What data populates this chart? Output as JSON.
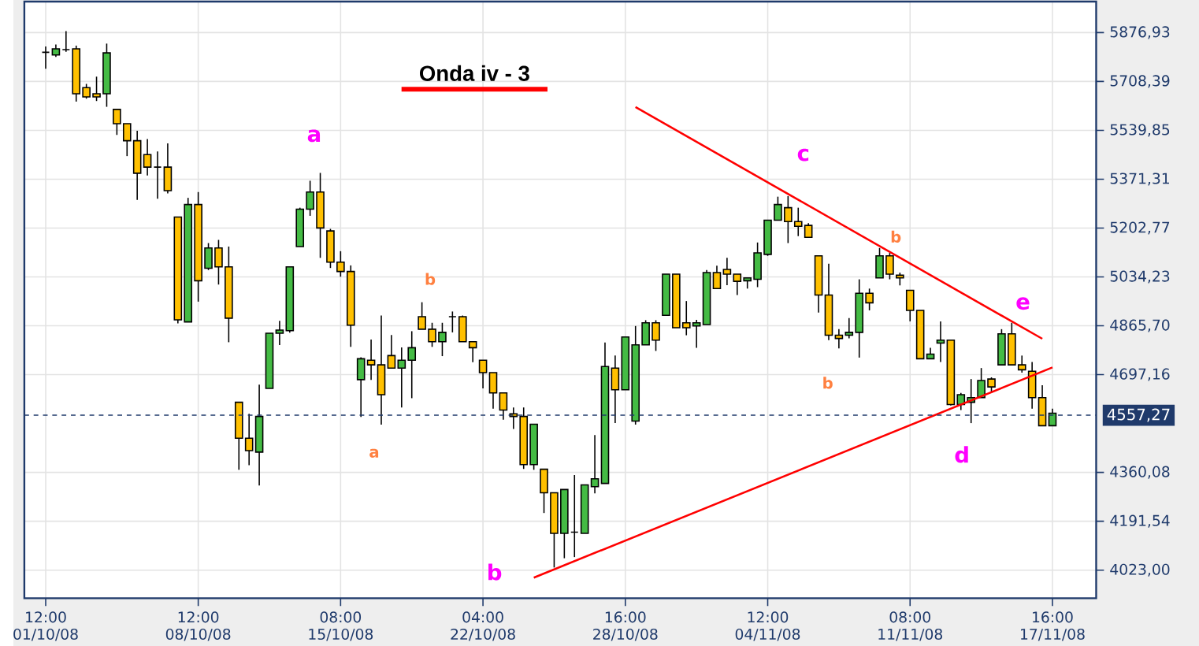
{
  "chart_data": {
    "type": "candlestick",
    "title": "Onda iv - 3",
    "categories": [
      "12:00 01/10/08",
      null,
      null,
      null,
      null,
      null,
      null,
      null,
      null,
      null,
      null,
      null,
      null,
      null,
      null,
      "12:00 08/10/08",
      null,
      null,
      null,
      null,
      null,
      null,
      null,
      null,
      null,
      null,
      null,
      null,
      null,
      "08:00 15/10/08",
      null,
      null,
      null,
      null,
      null,
      null,
      null,
      null,
      null,
      null,
      null,
      null,
      null,
      "04:00 22/10/08",
      null,
      null,
      null,
      null,
      null,
      null,
      null,
      null,
      null,
      null,
      null,
      null,
      null,
      "16:00 28/10/08",
      null,
      null,
      null,
      null,
      null,
      null,
      null,
      null,
      null,
      null,
      null,
      null,
      null,
      "12:00 04/11/08",
      null,
      null,
      null,
      null,
      null,
      null,
      null,
      null,
      null,
      null,
      null,
      null,
      null,
      "08:00 11/11/08",
      null,
      null,
      null,
      null,
      null,
      null,
      null,
      null,
      null,
      null,
      null,
      null,
      null,
      "16:00 17/11/08"
    ],
    "ylim": [
      3926,
      5984
    ],
    "yticks": [
      {
        "value": 4023.0,
        "label": "4023,00"
      },
      {
        "value": 4191.54,
        "label": "4191,54"
      },
      {
        "value": 4360.08,
        "label": "4360,08"
      },
      {
        "value": 4697.16,
        "label": "4697,16"
      },
      {
        "value": 4865.7,
        "label": "4865,70"
      },
      {
        "value": 5034.23,
        "label": "5034,23"
      },
      {
        "value": 5202.77,
        "label": "5202,77"
      },
      {
        "value": 5371.31,
        "label": "5371,31"
      },
      {
        "value": 5539.85,
        "label": "5539,85"
      },
      {
        "value": 5708.39,
        "label": "5708,39"
      },
      {
        "value": 5876.93,
        "label": "5876,93"
      }
    ],
    "grid": true,
    "series": [
      {
        "ohlc": [
          [
            5809,
            5829,
            5752,
            5809
          ],
          [
            5800,
            5836,
            5793,
            5821
          ],
          [
            5818,
            5882,
            5811,
            5818
          ],
          [
            5821,
            5832,
            5639,
            5666
          ],
          [
            5687,
            5700,
            5649,
            5655
          ],
          [
            5666,
            5725,
            5641,
            5655
          ],
          [
            5666,
            5839,
            5621,
            5807
          ],
          [
            5612,
            5612,
            5524,
            5563
          ],
          [
            5563,
            5563,
            5451,
            5504
          ],
          [
            5504,
            5538,
            5300,
            5392
          ],
          [
            5456,
            5510,
            5384,
            5413
          ],
          [
            5413,
            5467,
            5304,
            5413
          ],
          [
            5413,
            5495,
            5322,
            5332
          ],
          [
            5241,
            5241,
            4874,
            4886
          ],
          [
            4879,
            5307,
            4879,
            5284
          ],
          [
            5284,
            5327,
            4949,
            5021
          ],
          [
            5064,
            5151,
            5058,
            5134
          ],
          [
            5134,
            5162,
            5008,
            5069
          ],
          [
            5069,
            5139,
            4809,
            4892
          ],
          [
            4602,
            4602,
            4369,
            4478
          ],
          [
            4478,
            4562,
            4385,
            4435
          ],
          [
            4430,
            4663,
            4315,
            4553
          ],
          [
            4650,
            4840,
            4650,
            4840
          ],
          [
            4840,
            4883,
            4799,
            4851
          ],
          [
            4849,
            5069,
            4842,
            5069
          ],
          [
            5139,
            5273,
            5139,
            5268
          ],
          [
            5268,
            5366,
            5245,
            5327
          ],
          [
            5327,
            5393,
            5100,
            5203
          ],
          [
            5193,
            5200,
            5065,
            5085
          ],
          [
            5085,
            5123,
            5035,
            5053
          ],
          [
            5053,
            5074,
            4793,
            4868
          ],
          [
            4680,
            4757,
            4551,
            4752
          ],
          [
            4747,
            4818,
            4679,
            4731
          ],
          [
            4731,
            4901,
            4525,
            4628
          ],
          [
            4763,
            4834,
            4720,
            4720
          ],
          [
            4720,
            4791,
            4584,
            4747
          ],
          [
            4747,
            4847,
            4616,
            4790
          ],
          [
            4897,
            4947,
            4854,
            4854
          ],
          [
            4854,
            4876,
            4793,
            4811
          ],
          [
            4811,
            4876,
            4761,
            4843
          ],
          [
            4897,
            4915,
            4843,
            4897
          ],
          [
            4897,
            4901,
            4811,
            4811
          ],
          [
            4811,
            4811,
            4740,
            4790
          ],
          [
            4747,
            4747,
            4650,
            4704
          ],
          [
            4704,
            4704,
            4580,
            4634
          ],
          [
            4634,
            4634,
            4542,
            4575
          ],
          [
            4562,
            4584,
            4510,
            4553
          ],
          [
            4553,
            4584,
            4372,
            4387
          ],
          [
            4387,
            4526,
            4369,
            4526
          ],
          [
            4371,
            4371,
            4220,
            4290
          ],
          [
            4290,
            4290,
            4032,
            4150
          ],
          [
            4150,
            4301,
            4064,
            4301
          ],
          [
            4154,
            4351,
            4068,
            4154
          ],
          [
            4150,
            4317,
            4150,
            4317
          ],
          [
            4311,
            4489,
            4288,
            4338
          ],
          [
            4322,
            4808,
            4322,
            4725
          ],
          [
            4720,
            4763,
            4530,
            4645
          ],
          [
            4645,
            4827,
            4645,
            4827
          ],
          [
            4537,
            4865,
            4525,
            4800
          ],
          [
            4800,
            4885,
            4800,
            4876
          ],
          [
            4876,
            4885,
            4779,
            4816
          ],
          [
            4902,
            5044,
            4902,
            5044
          ],
          [
            5044,
            5044,
            4859,
            4859
          ],
          [
            4876,
            4951,
            4833,
            4859
          ],
          [
            4865,
            4886,
            4790,
            4876
          ],
          [
            4870,
            5058,
            4870,
            5049
          ],
          [
            5049,
            5073,
            4994,
            4994
          ],
          [
            5060,
            5100,
            5006,
            5044
          ],
          [
            5044,
            5044,
            4972,
            5019
          ],
          [
            5021,
            5031,
            4994,
            5031
          ],
          [
            5026,
            5153,
            4999,
            5117
          ],
          [
            5112,
            5230,
            5107,
            5230
          ],
          [
            5230,
            5311,
            5230,
            5284
          ],
          [
            5273,
            5313,
            5151,
            5225
          ],
          [
            5225,
            5273,
            5175,
            5209
          ],
          [
            5212,
            5220,
            5171,
            5171
          ],
          [
            5107,
            5107,
            4911,
            4972
          ],
          [
            4972,
            5080,
            4816,
            4833
          ],
          [
            4833,
            4854,
            4788,
            4822
          ],
          [
            4833,
            4892,
            4822,
            4843
          ],
          [
            4843,
            5026,
            4756,
            4978
          ],
          [
            4978,
            4994,
            4919,
            4945
          ],
          [
            5031,
            5134,
            5031,
            5107
          ],
          [
            5107,
            5117,
            5026,
            5044
          ],
          [
            5040,
            5049,
            5005,
            5031
          ],
          [
            4988,
            4988,
            4881,
            4919
          ],
          [
            4919,
            4919,
            4752,
            4752
          ],
          [
            4752,
            4790,
            4752,
            4768
          ],
          [
            4806,
            4881,
            4741,
            4816
          ],
          [
            4816,
            4816,
            4591,
            4594
          ],
          [
            4594,
            4634,
            4575,
            4628
          ],
          [
            4602,
            4682,
            4530,
            4618
          ],
          [
            4618,
            4720,
            4618,
            4677
          ],
          [
            4682,
            4688,
            4634,
            4655
          ],
          [
            4731,
            4854,
            4731,
            4838
          ],
          [
            4838,
            4876,
            4731,
            4731
          ],
          [
            4731,
            4763,
            4704,
            4714
          ],
          [
            4709,
            4741,
            4580,
            4618
          ],
          [
            4618,
            4661,
            4521,
            4521
          ],
          [
            4521,
            4580,
            4521,
            4564
          ]
        ],
        "colors": [
          "#000000",
          "#44bb44",
          "#000000",
          "#ffc000",
          "#ffc000",
          "#ffc000",
          "#44bb44",
          "#ffc000",
          "#ffc000",
          "#ffc000",
          "#ffc000",
          "#000000",
          "#ffc000",
          "#ffc000",
          "#44bb44",
          "#ffc000",
          "#44bb44",
          "#ffc000",
          "#ffc000",
          "#ffc000",
          "#ffc000",
          "#44bb44",
          "#44bb44",
          "#44bb44",
          "#44bb44",
          "#44bb44",
          "#44bb44",
          "#ffc000",
          "#ffc000",
          "#ffc000",
          "#ffc000",
          "#44bb44",
          "#ffc000",
          "#ffc000",
          "#ffc000",
          "#44bb44",
          "#44bb44",
          "#ffc000",
          "#ffc000",
          "#44bb44",
          "#000000",
          "#ffc000",
          "#ffc000",
          "#ffc000",
          "#ffc000",
          "#ffc000",
          "#ffc000",
          "#ffc000",
          "#44bb44",
          "#ffc000",
          "#ffc000",
          "#44bb44",
          "#000000",
          "#44bb44",
          "#44bb44",
          "#44bb44",
          "#ffc000",
          "#44bb44",
          "#44bb44",
          "#44bb44",
          "#ffc000",
          "#44bb44",
          "#ffc000",
          "#ffc000",
          "#44bb44",
          "#44bb44",
          "#ffc000",
          "#ffc000",
          "#ffc000",
          "#44bb44",
          "#44bb44",
          "#44bb44",
          "#44bb44",
          "#ffc000",
          "#ffc000",
          "#ffc000",
          "#ffc000",
          "#ffc000",
          "#ffc000",
          "#44bb44",
          "#44bb44",
          "#ffc000",
          "#44bb44",
          "#ffc000",
          "#ffc000",
          "#ffc000",
          "#ffc000",
          "#44bb44",
          "#44bb44",
          "#ffc000",
          "#44bb44",
          "#44bb44",
          "#44bb44",
          "#ffc000",
          "#44bb44",
          "#ffc000",
          "#ffc000",
          "#ffc000",
          "#ffc000",
          "#44bb44"
        ]
      },
      {
        "type": "line",
        "values": [
          null,
          null,
          null,
          null,
          null,
          null,
          null,
          null,
          null,
          null,
          null,
          null,
          null,
          null,
          null,
          null,
          null,
          null,
          null,
          null,
          null,
          null,
          null,
          null,
          null,
          null,
          null,
          null,
          null,
          null,
          null,
          null,
          null,
          null,
          null,
          null,
          null,
          null,
          null,
          null,
          null,
          null,
          null,
          null,
          null,
          null,
          null,
          null,
          null,
          null,
          null,
          null,
          null,
          null,
          null,
          null,
          null,
          null,
          5620,
          null,
          null,
          null,
          null,
          null,
          null,
          null,
          null,
          null,
          null,
          null,
          null,
          null,
          null,
          null,
          null,
          null,
          null,
          null,
          null,
          null,
          null,
          null,
          null,
          null,
          null,
          null,
          null,
          null,
          null,
          null,
          null,
          null,
          null,
          null,
          null,
          null,
          null,
          null,
          4821,
          null
        ],
        "color": "#ff0000"
      },
      {
        "type": "line",
        "values": [
          null,
          null,
          null,
          null,
          null,
          null,
          null,
          null,
          null,
          null,
          null,
          null,
          null,
          null,
          null,
          null,
          null,
          null,
          null,
          null,
          null,
          null,
          null,
          null,
          null,
          null,
          null,
          null,
          null,
          null,
          null,
          null,
          null,
          null,
          null,
          null,
          null,
          null,
          null,
          null,
          null,
          null,
          null,
          null,
          null,
          null,
          null,
          null,
          3997,
          null,
          null,
          null,
          null,
          null,
          null,
          null,
          null,
          null,
          null,
          null,
          null,
          null,
          null,
          null,
          null,
          null,
          null,
          null,
          null,
          null,
          null,
          null,
          null,
          null,
          null,
          null,
          null,
          null,
          null,
          null,
          null,
          null,
          null,
          null,
          null,
          null,
          null,
          null,
          null,
          null,
          null,
          null,
          null,
          null,
          null,
          null,
          null,
          null,
          null,
          4722
        ],
        "color": "#ff0000"
      }
    ],
    "ref_lines": [
      {
        "axis": "y",
        "value": 4557.27,
        "label": "4557,27",
        "color": "#1f3a6b",
        "line_style": "dashed"
      }
    ],
    "annotations": [
      "a",
      "b",
      "c",
      "d",
      "e",
      "a",
      "b",
      "b",
      "b"
    ]
  }
}
